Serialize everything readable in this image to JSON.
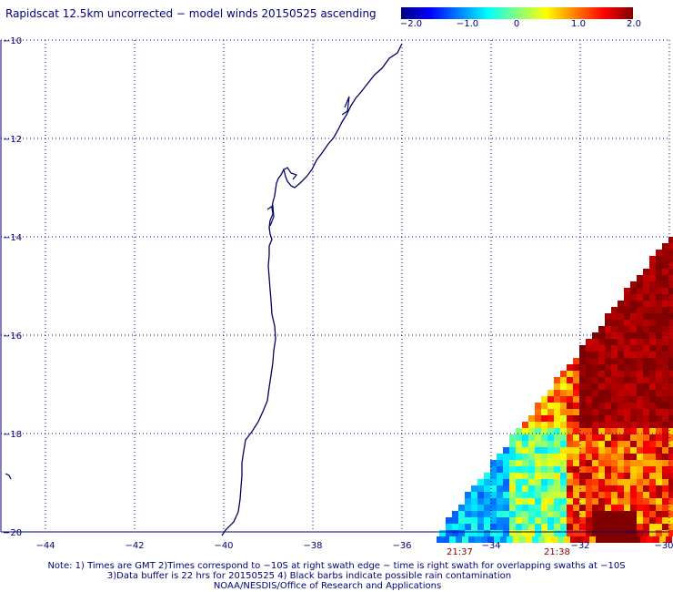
{
  "title": "Rapidscat 12.5km uncorrected − model winds 20150525 ascending",
  "colorbar": {
    "ticks": [
      "−2.0",
      "−1.0",
      "0",
      "1.0",
      "2.0"
    ],
    "range": [
      -2.0,
      2.0
    ],
    "colors": [
      "#000080",
      "#0000ff",
      "#0080ff",
      "#00ffff",
      "#80ff80",
      "#ffff00",
      "#ff8000",
      "#ff0000",
      "#800000"
    ]
  },
  "map": {
    "lon_ticks": [
      "−44",
      "−42",
      "−40",
      "−38",
      "−36",
      "−34",
      "−32",
      "−30"
    ],
    "lat_ticks": [
      "−10",
      "−12",
      "−14",
      "−16",
      "−18",
      "−20"
    ],
    "lon_range": [
      -45,
      -30
    ],
    "lat_range": [
      -20,
      -10
    ],
    "coast_color": "#000066",
    "grid_color": "#000080"
  },
  "swath_times": [
    "21:37",
    "21:38"
  ],
  "notes": [
    "Note: 1) Times are GMT 2)Times correspond to −10S at right swath edge − time is right swath for overlapping swaths at −10S",
    "3)Data buffer is 22 hrs for 20150525 4) Black barbs indicate possible rain contamination",
    "NOAA/NESDIS/Office of Research and Applications"
  ]
}
